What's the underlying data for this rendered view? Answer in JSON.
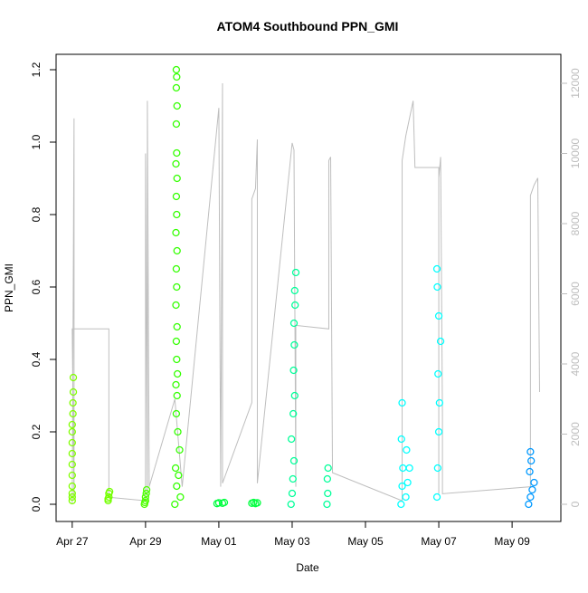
{
  "chart_data": {
    "type": "scatter",
    "title": "ATOM4 Southbound PPN_GMI",
    "x_label": "Date",
    "y_label": "PPN_GMI",
    "xlim": [
      -0.44,
      13.33
    ],
    "ylim": [
      -0.0475,
      1.2425
    ],
    "y2lim": [
      -490,
      12826
    ],
    "xticks": [
      {
        "value": 0,
        "label": "Apr 27"
      },
      {
        "value": 2,
        "label": "Apr 29"
      },
      {
        "value": 4,
        "label": "May 01"
      },
      {
        "value": 6,
        "label": "May 03"
      },
      {
        "value": 8,
        "label": "May 05"
      },
      {
        "value": 10,
        "label": "May 07"
      },
      {
        "value": 12,
        "label": "May 09"
      }
    ],
    "yticks": [
      {
        "value": 0,
        "label": "0.0"
      },
      0.2,
      0.4,
      0.6,
      0.8,
      {
        "value": 1,
        "label": "1.0"
      },
      1.2
    ],
    "y2ticks": [
      0,
      2000,
      4000,
      6000,
      8000,
      10000,
      12000
    ],
    "y2_color": "#bebebe",
    "series": [
      {
        "color": "#bebebe",
        "axis": "y2",
        "mode": "line",
        "x": [
          0.0,
          0.05,
          0.05,
          0.0,
          1.0,
          1.0,
          2.0,
          2.0,
          2.05,
          2.05,
          2.1,
          2.8,
          3.0,
          4.0,
          4.05,
          4.1,
          4.1,
          4.9,
          4.9,
          5.0,
          5.05,
          5.05,
          6.0,
          6.05,
          6.1,
          6.1,
          7.0,
          7.0,
          7.05,
          7.1,
          9.0,
          9.0,
          9.1,
          9.2,
          9.3,
          9.35,
          10.0,
          10.0,
          10.0,
          10.05,
          10.1,
          10.1,
          12.5,
          12.5,
          12.6,
          12.7,
          12.75
        ],
        "values": [
          0,
          11000,
          200,
          5000,
          5000,
          200,
          100,
          10000,
          300,
          11500,
          500,
          3000,
          500,
          11300,
          500,
          12000,
          600,
          2900,
          8700,
          9000,
          10400,
          600,
          10300,
          10100,
          500,
          5100,
          5000,
          9800,
          9900,
          900,
          100,
          9800,
          10500,
          11000,
          11500,
          9600,
          9600,
          300,
          9300,
          9900,
          2500,
          300,
          500,
          8800,
          9100,
          9300,
          3200
        ]
      },
      {
        "color": "#80ff00",
        "x": [
          0,
          0,
          0,
          0,
          0,
          0,
          0,
          0,
          0,
          0,
          0.02,
          0.02,
          0.03,
          0.03
        ],
        "values": [
          0.01,
          0.02,
          0.03,
          0.05,
          0.08,
          0.11,
          0.14,
          0.17,
          0.2,
          0.22,
          0.25,
          0.28,
          0.31,
          0.35
        ]
      },
      {
        "color": "#73ff00",
        "x": [
          0.98,
          0.98,
          1.0,
          1.0,
          1.02
        ],
        "values": [
          0.01,
          0.015,
          0.02,
          0.03,
          0.035
        ]
      },
      {
        "color": "#4dff00",
        "x": [
          1.97,
          1.98,
          2.0,
          2.0,
          2.02,
          2.03
        ],
        "values": [
          0.0,
          0.005,
          0.01,
          0.02,
          0.03,
          0.04
        ]
      },
      {
        "color": "#33ff00",
        "x": [
          2.8,
          2.95,
          2.85,
          2.9,
          2.82,
          2.93,
          2.88,
          2.84,
          2.86,
          2.83,
          2.87,
          2.85,
          2.84,
          2.86,
          2.83,
          2.85,
          2.84,
          2.86,
          2.83,
          2.85,
          2.84,
          2.86,
          2.83,
          2.85,
          2.84,
          2.86,
          2.84,
          2.85,
          2.84
        ],
        "values": [
          0,
          0.02,
          0.05,
          0.08,
          0.1,
          0.15,
          0.2,
          0.25,
          0.3,
          0.33,
          0.36,
          0.4,
          0.45,
          0.49,
          0.55,
          0.6,
          0.65,
          0.7,
          0.75,
          0.8,
          0.85,
          0.9,
          0.94,
          0.97,
          1.05,
          1.1,
          1.15,
          1.18,
          1.2
        ]
      },
      {
        "color": "#00ff40",
        "x": [
          3.95,
          4.0,
          4.1,
          4.15,
          4.9,
          4.95,
          5.0,
          5.05
        ],
        "values": [
          0.002,
          0.004,
          0.003,
          0.005,
          0.003,
          0.005,
          0.002,
          0.004
        ]
      },
      {
        "color": "#00ff99",
        "x": [
          5.97,
          6.0,
          6.02,
          6.05,
          5.98,
          6.03,
          6.07,
          6.04,
          6.06,
          6.05,
          6.08,
          6.07,
          6.1,
          6.95,
          6.97,
          6.96,
          6.98
        ],
        "values": [
          0.0,
          0.03,
          0.07,
          0.12,
          0.18,
          0.25,
          0.3,
          0.37,
          0.44,
          0.5,
          0.55,
          0.59,
          0.64,
          0.0,
          0.03,
          0.07,
          0.1
        ]
      },
      {
        "color": "#00ffff",
        "x": [
          8.97,
          9.0,
          9.02,
          8.98,
          9.0,
          9.1,
          9.15,
          9.2,
          9.12,
          9.95,
          9.97,
          10.0,
          10.02,
          9.98,
          10.05,
          10.0,
          9.96,
          9.95
        ],
        "values": [
          0.0,
          0.05,
          0.1,
          0.18,
          0.28,
          0.02,
          0.06,
          0.1,
          0.15,
          0.02,
          0.1,
          0.2,
          0.28,
          0.36,
          0.45,
          0.52,
          0.6,
          0.65
        ]
      },
      {
        "color": "#0099ff",
        "x": [
          12.45,
          12.5,
          12.55,
          12.6,
          12.48,
          12.52,
          12.5
        ],
        "values": [
          0.0,
          0.02,
          0.04,
          0.06,
          0.09,
          0.12,
          0.145
        ]
      }
    ]
  }
}
